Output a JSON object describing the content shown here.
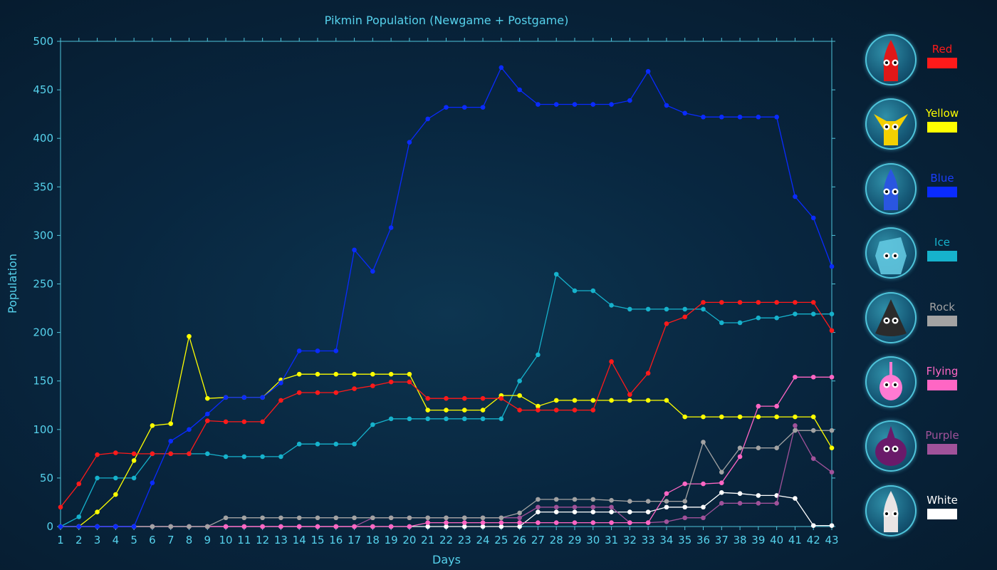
{
  "chart_data": {
    "type": "line",
    "title": "Pikmin Population (Newgame + Postgame)",
    "xlabel": "Days",
    "ylabel": "Population",
    "xlim": [
      1,
      43
    ],
    "ylim": [
      0,
      500
    ],
    "yticks": [
      0,
      50,
      100,
      150,
      200,
      250,
      300,
      350,
      400,
      450,
      500
    ],
    "x": [
      1,
      2,
      3,
      4,
      5,
      6,
      7,
      8,
      9,
      10,
      11,
      12,
      13,
      14,
      15,
      16,
      17,
      18,
      19,
      20,
      21,
      22,
      23,
      24,
      25,
      26,
      27,
      28,
      29,
      30,
      31,
      32,
      33,
      34,
      35,
      36,
      37,
      38,
      39,
      40,
      41,
      42,
      43
    ],
    "grid": false,
    "legend_position": "right",
    "series": [
      {
        "name": "White",
        "color": "#ffffff",
        "values": [
          0,
          0,
          0,
          0,
          0,
          0,
          0,
          0,
          0,
          0,
          0,
          0,
          0,
          0,
          0,
          0,
          0,
          0,
          0,
          0,
          0,
          0,
          0,
          0,
          0,
          0,
          15,
          15,
          15,
          15,
          15,
          15,
          15,
          20,
          20,
          20,
          35,
          34,
          32,
          32,
          29,
          1,
          1
        ]
      },
      {
        "name": "Purple",
        "color": "#a0529a",
        "values": [
          0,
          0,
          0,
          0,
          0,
          0,
          0,
          0,
          0,
          0,
          0,
          0,
          0,
          0,
          0,
          0,
          0,
          9,
          9,
          9,
          9,
          9,
          9,
          9,
          9,
          9,
          20,
          20,
          20,
          20,
          20,
          4,
          4,
          5,
          9,
          9,
          24,
          24,
          24,
          24,
          104,
          70,
          56
        ]
      },
      {
        "name": "Flying",
        "color": "#ff66c4",
        "values": [
          0,
          0,
          0,
          0,
          0,
          0,
          0,
          0,
          0,
          0,
          0,
          0,
          0,
          0,
          0,
          0,
          0,
          0,
          0,
          0,
          4,
          4,
          4,
          4,
          4,
          4,
          4,
          4,
          4,
          4,
          4,
          4,
          4,
          34,
          44,
          44,
          45,
          72,
          124,
          124,
          154,
          154,
          154
        ]
      },
      {
        "name": "Rock",
        "color": "#a3a3a3",
        "values": [
          0,
          0,
          0,
          0,
          0,
          0,
          0,
          0,
          0,
          9,
          9,
          9,
          9,
          9,
          9,
          9,
          9,
          9,
          9,
          9,
          9,
          9,
          9,
          9,
          9,
          14,
          28,
          28,
          28,
          28,
          27,
          26,
          26,
          26,
          26,
          87,
          56,
          81,
          81,
          81,
          99,
          99,
          99
        ]
      },
      {
        "name": "Ice",
        "color": "#16b2cc",
        "values": [
          0,
          10,
          50,
          50,
          50,
          75,
          75,
          75,
          75,
          72,
          72,
          72,
          72,
          85,
          85,
          85,
          85,
          105,
          111,
          111,
          111,
          111,
          111,
          111,
          111,
          150,
          177,
          260,
          243,
          243,
          228,
          224,
          224,
          224,
          224,
          224,
          210,
          210,
          215,
          215,
          219,
          219,
          219
        ]
      },
      {
        "name": "Yellow",
        "color": "#ffff00",
        "values": [
          0,
          0,
          15,
          33,
          68,
          104,
          106,
          196,
          132,
          133,
          133,
          133,
          151,
          157,
          157,
          157,
          157,
          157,
          157,
          157,
          120,
          120,
          120,
          120,
          135,
          135,
          124,
          130,
          130,
          130,
          130,
          130,
          130,
          130,
          113,
          113,
          113,
          113,
          113,
          113,
          113,
          113,
          81
        ]
      },
      {
        "name": "Red",
        "color": "#ff1a1a",
        "values": [
          20,
          44,
          74,
          76,
          75,
          75,
          75,
          75,
          109,
          108,
          108,
          108,
          130,
          138,
          138,
          138,
          142,
          145,
          149,
          149,
          132,
          132,
          132,
          132,
          132,
          120,
          120,
          120,
          120,
          120,
          170,
          136,
          158,
          209,
          216,
          231,
          231,
          231,
          231,
          231,
          231,
          231,
          202
        ]
      },
      {
        "name": "Blue",
        "color": "#0a2bff",
        "values": [
          0,
          0,
          0,
          0,
          0,
          45,
          88,
          100,
          116,
          133,
          133,
          133,
          148,
          181,
          181,
          181,
          285,
          263,
          308,
          396,
          420,
          432,
          432,
          432,
          473,
          450,
          435,
          435,
          435,
          435,
          435,
          439,
          469,
          434,
          426,
          422,
          422,
          422,
          422,
          422,
          340,
          318,
          268
        ]
      }
    ]
  },
  "legend": [
    {
      "label": "Red",
      "color": "#ff1a1a",
      "icon": "red-pikmin-icon"
    },
    {
      "label": "Yellow",
      "color": "#ffff00",
      "icon": "yellow-pikmin-icon"
    },
    {
      "label": "Blue",
      "color": "#0a2bff",
      "icon": "blue-pikmin-icon"
    },
    {
      "label": "Ice",
      "color": "#16b2cc",
      "icon": "ice-pikmin-icon"
    },
    {
      "label": "Rock",
      "color": "#a3a3a3",
      "icon": "rock-pikmin-icon"
    },
    {
      "label": "Flying",
      "color": "#ff66c4",
      "icon": "flying-pikmin-icon"
    },
    {
      "label": "Purple",
      "color": "#a0529a",
      "icon": "purple-pikmin-icon"
    },
    {
      "label": "White",
      "color": "#ffffff",
      "icon": "white-pikmin-icon"
    }
  ],
  "colors": {
    "axis": "#4fc4da",
    "text": "#56d2ec"
  }
}
